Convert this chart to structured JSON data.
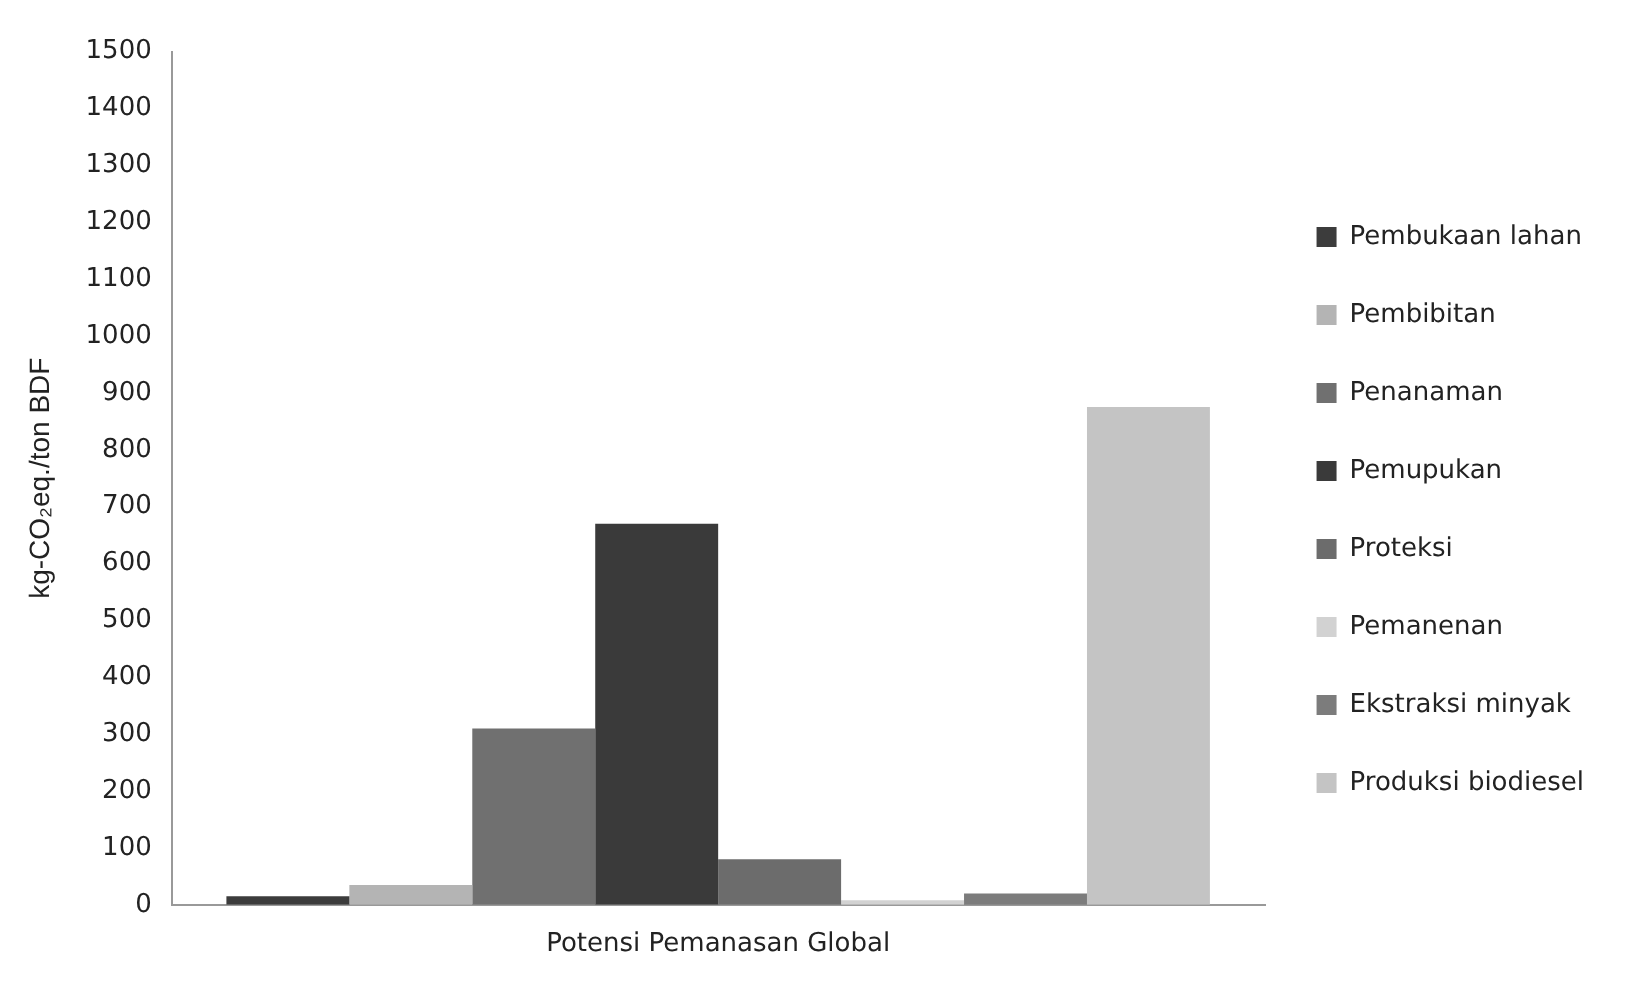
{
  "chart_data": {
    "type": "bar",
    "categories": [
      "Potensi Pemanasan Global"
    ],
    "ylabel": "kg-CO₂eq./ton BDF",
    "series": [
      {
        "name": "Pembukaan lahan",
        "color": "#3c3c3c",
        "values": [
          15
        ]
      },
      {
        "name": "Pembibitan",
        "color": "#b4b4b4",
        "values": [
          35
        ]
      },
      {
        "name": "Penanaman",
        "color": "#707070",
        "values": [
          310
        ]
      },
      {
        "name": "Pemupukan",
        "color": "#3a3a3a",
        "values": [
          670
        ]
      },
      {
        "name": "Proteksi",
        "color": "#6c6c6c",
        "values": [
          80
        ]
      },
      {
        "name": "Pemanenan",
        "color": "#d2d2d2",
        "values": [
          8
        ]
      },
      {
        "name": "Ekstraksi minyak",
        "color": "#7c7c7c",
        "values": [
          20
        ]
      },
      {
        "name": "Produksi biodiesel",
        "color": "#c4c4c4",
        "values": [
          875
        ]
      }
    ],
    "ylim": [
      0,
      1500
    ],
    "yticks": [
      0,
      100,
      200,
      300,
      400,
      500,
      600,
      700,
      800,
      900,
      1000,
      1100,
      1200,
      1300,
      1400,
      1500
    ],
    "grid": false,
    "legend": "right"
  }
}
